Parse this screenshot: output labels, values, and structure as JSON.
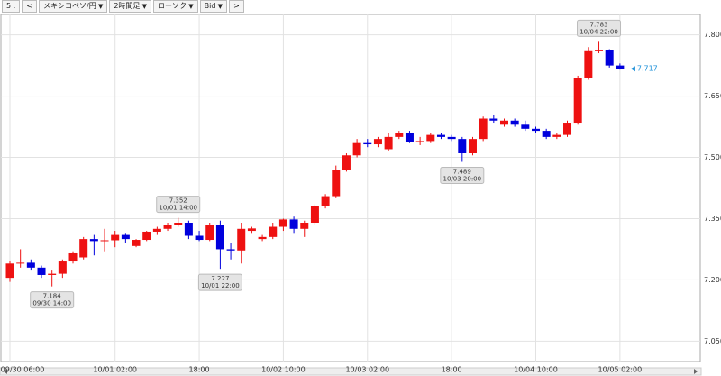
{
  "toolbar": [
    "5 :",
    "<",
    "メキシコペソ/円",
    "2時間足",
    "ローソク",
    "Bid",
    ">"
  ],
  "chart_data": {
    "type": "candlestick",
    "categories": [
      "09/30 06:00",
      null,
      null,
      null,
      null,
      null,
      null,
      null,
      null,
      null,
      "10/01 02:00",
      null,
      null,
      null,
      null,
      null,
      null,
      null,
      "18:00",
      null,
      null,
      null,
      null,
      null,
      null,
      null,
      "10/02 10:00",
      null,
      null,
      null,
      null,
      null,
      null,
      null,
      "10/03 02:00",
      null,
      null,
      null,
      null,
      null,
      null,
      null,
      "18:00",
      null,
      null,
      null,
      null,
      null,
      null,
      null,
      "10/04 10:00",
      null,
      null,
      null,
      null,
      null,
      null,
      null,
      "10/05 02:00"
    ],
    "open": [
      7.205,
      7.24,
      7.242,
      7.23,
      7.212,
      7.215,
      7.245,
      7.255,
      7.3,
      7.295,
      7.297,
      7.31,
      7.283,
      7.298,
      7.318,
      7.325,
      7.335,
      7.34,
      7.308,
      7.298,
      7.335,
      7.275,
      7.272,
      7.32,
      7.3,
      7.305,
      7.33,
      7.348,
      7.325,
      7.34,
      7.38,
      7.405,
      7.47,
      7.505,
      7.535,
      7.532,
      7.52,
      7.55,
      7.56,
      7.538,
      7.54,
      7.555,
      7.55,
      7.545,
      7.51,
      7.545,
      7.595,
      7.58,
      7.59,
      7.58,
      7.57,
      7.565,
      7.55,
      7.555,
      7.585,
      7.695,
      7.76,
      7.762,
      7.725
    ],
    "high": [
      7.245,
      7.275,
      7.25,
      7.235,
      7.225,
      7.25,
      7.27,
      7.305,
      7.31,
      7.325,
      7.32,
      7.315,
      7.3,
      7.32,
      7.33,
      7.34,
      7.352,
      7.345,
      7.32,
      7.34,
      7.345,
      7.29,
      7.34,
      7.33,
      7.31,
      7.34,
      7.35,
      7.355,
      7.345,
      7.385,
      7.41,
      7.48,
      7.51,
      7.545,
      7.545,
      7.55,
      7.56,
      7.565,
      7.565,
      7.55,
      7.56,
      7.56,
      7.555,
      7.55,
      7.55,
      7.6,
      7.605,
      7.595,
      7.595,
      7.59,
      7.575,
      7.57,
      7.56,
      7.59,
      7.7,
      7.77,
      7.783,
      7.765,
      7.73
    ],
    "low": [
      7.195,
      7.23,
      7.225,
      7.205,
      7.184,
      7.205,
      7.24,
      7.25,
      7.26,
      7.27,
      7.28,
      7.29,
      7.28,
      7.295,
      7.31,
      7.32,
      7.33,
      7.3,
      7.295,
      7.295,
      7.227,
      7.25,
      7.24,
      7.315,
      7.295,
      7.3,
      7.32,
      7.315,
      7.305,
      7.335,
      7.375,
      7.4,
      7.465,
      7.5,
      7.525,
      7.525,
      7.515,
      7.545,
      7.535,
      7.53,
      7.535,
      7.545,
      7.54,
      7.489,
      7.505,
      7.54,
      7.585,
      7.575,
      7.575,
      7.565,
      7.56,
      7.545,
      7.545,
      7.55,
      7.58,
      7.69,
      7.755,
      7.72,
      7.715
    ],
    "close": [
      7.24,
      7.242,
      7.23,
      7.212,
      7.215,
      7.245,
      7.265,
      7.3,
      7.295,
      7.297,
      7.31,
      7.3,
      7.298,
      7.318,
      7.325,
      7.335,
      7.34,
      7.308,
      7.298,
      7.335,
      7.275,
      7.272,
      7.325,
      7.326,
      7.305,
      7.33,
      7.348,
      7.325,
      7.34,
      7.38,
      7.405,
      7.47,
      7.505,
      7.535,
      7.532,
      7.545,
      7.55,
      7.56,
      7.538,
      7.54,
      7.555,
      7.55,
      7.545,
      7.51,
      7.545,
      7.595,
      7.59,
      7.59,
      7.58,
      7.57,
      7.565,
      7.55,
      7.555,
      7.585,
      7.695,
      7.76,
      7.762,
      7.725,
      7.717
    ],
    "up_color": "#ee1111",
    "down_color": "#0000dd",
    "ylim": [
      7.0,
      7.85
    ],
    "yticks": [
      {
        "value": 7.05,
        "label": "7.050"
      },
      {
        "value": 7.2,
        "label": "7.200"
      },
      {
        "value": 7.35,
        "label": "7.350"
      },
      {
        "value": 7.5,
        "label": "7.500"
      },
      {
        "value": 7.65,
        "label": "7.650"
      },
      {
        "value": 7.8,
        "label": "7.800"
      }
    ],
    "grid": true,
    "annotations": [
      {
        "value": 7.184,
        "time": "09/30 14:00"
      },
      {
        "value": 7.352,
        "time": "10/01 14:00"
      },
      {
        "value": 7.227,
        "time": "10/01 22:00"
      },
      {
        "value": 7.489,
        "time": "10/03 20:00"
      },
      {
        "value": 7.783,
        "time": "10/04 22:00"
      }
    ],
    "last_price": 7.717,
    "last_price_color": "#1a8fd8"
  }
}
